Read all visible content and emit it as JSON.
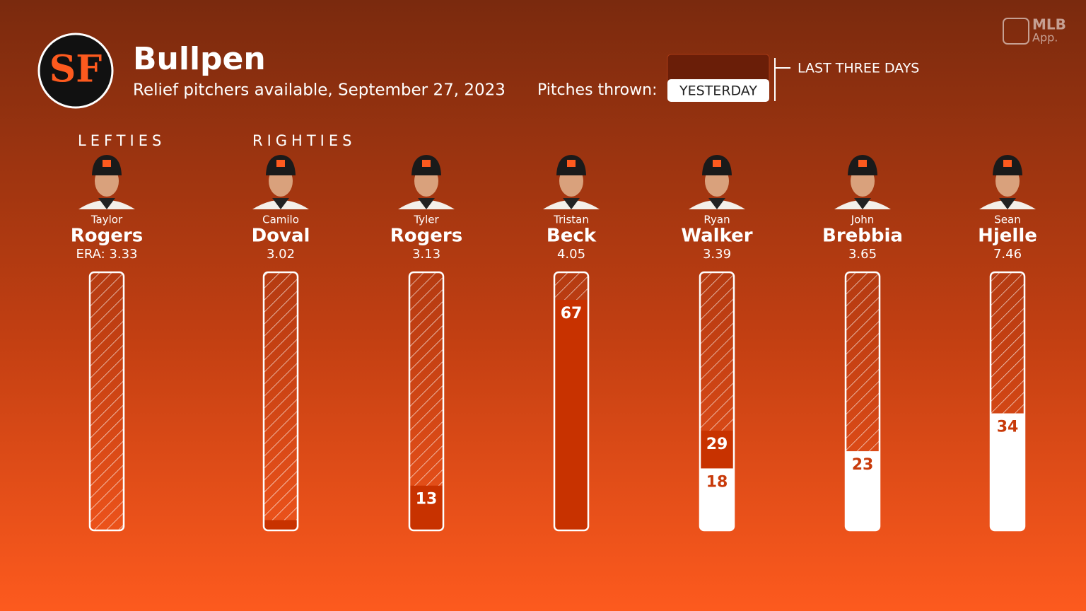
{
  "header": {
    "title": "Bullpen",
    "subtitle": "Relief pitchers available, September 27, 2023",
    "brand": [
      "MLB",
      "App."
    ],
    "logo": "SF"
  },
  "legend": {
    "label": "Pitches thrown:",
    "last_three_days": "LAST THREE DAYS",
    "yesterday": "YESTERDAY"
  },
  "sections": [
    "LEFTIES",
    "RIGHTIES"
  ],
  "ylim": [
    0,
    75
  ],
  "pitchers": [
    {
      "first": "Taylor",
      "last": "Rogers",
      "era": "ERA: 3.33",
      "last_three_days": null,
      "yesterday": null
    },
    {
      "first": "Camilo",
      "last": "Doval",
      "era": "3.02",
      "last_three_days": 3,
      "yesterday": null
    },
    {
      "first": "Tyler",
      "last": "Rogers",
      "era": "3.13",
      "last_three_days": 13,
      "yesterday": null
    },
    {
      "first": "Tristan",
      "last": "Beck",
      "era": "4.05",
      "last_three_days": 67,
      "yesterday": null
    },
    {
      "first": "Ryan",
      "last": "Walker",
      "era": "3.39",
      "last_three_days": 29,
      "yesterday": 18
    },
    {
      "first": "John",
      "last": "Brebbia",
      "era": "3.65",
      "last_three_days": null,
      "yesterday": 23
    },
    {
      "first": "Sean",
      "last": "Hjelle",
      "era": "7.46",
      "last_three_days": null,
      "yesterday": 34
    }
  ]
}
